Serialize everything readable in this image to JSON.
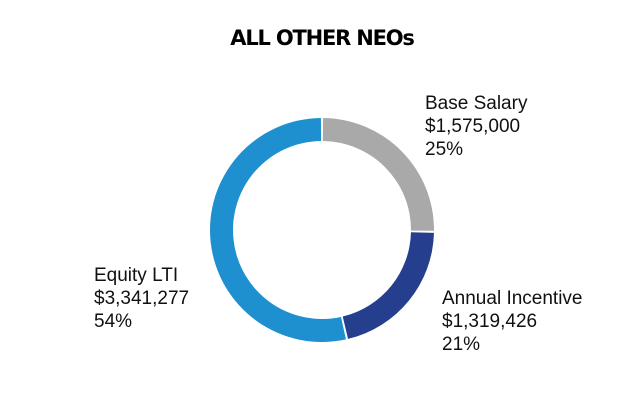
{
  "chart_data": {
    "type": "pie",
    "title": "ALL OTHER NEOs",
    "donut": true,
    "series": [
      {
        "name": "Base Salary",
        "value": 1575000,
        "value_label": "$1,575,000",
        "percent_label": "25%",
        "color": "#a9a9a9"
      },
      {
        "name": "Annual Incentive",
        "value": 1319426,
        "value_label": "$1,319,426",
        "percent_label": "21%",
        "color": "#253f8e"
      },
      {
        "name": "Equity LTI",
        "value": 3341277,
        "value_label": "$3,341,277",
        "percent_label": "54%",
        "color": "#1e90d0"
      }
    ]
  }
}
